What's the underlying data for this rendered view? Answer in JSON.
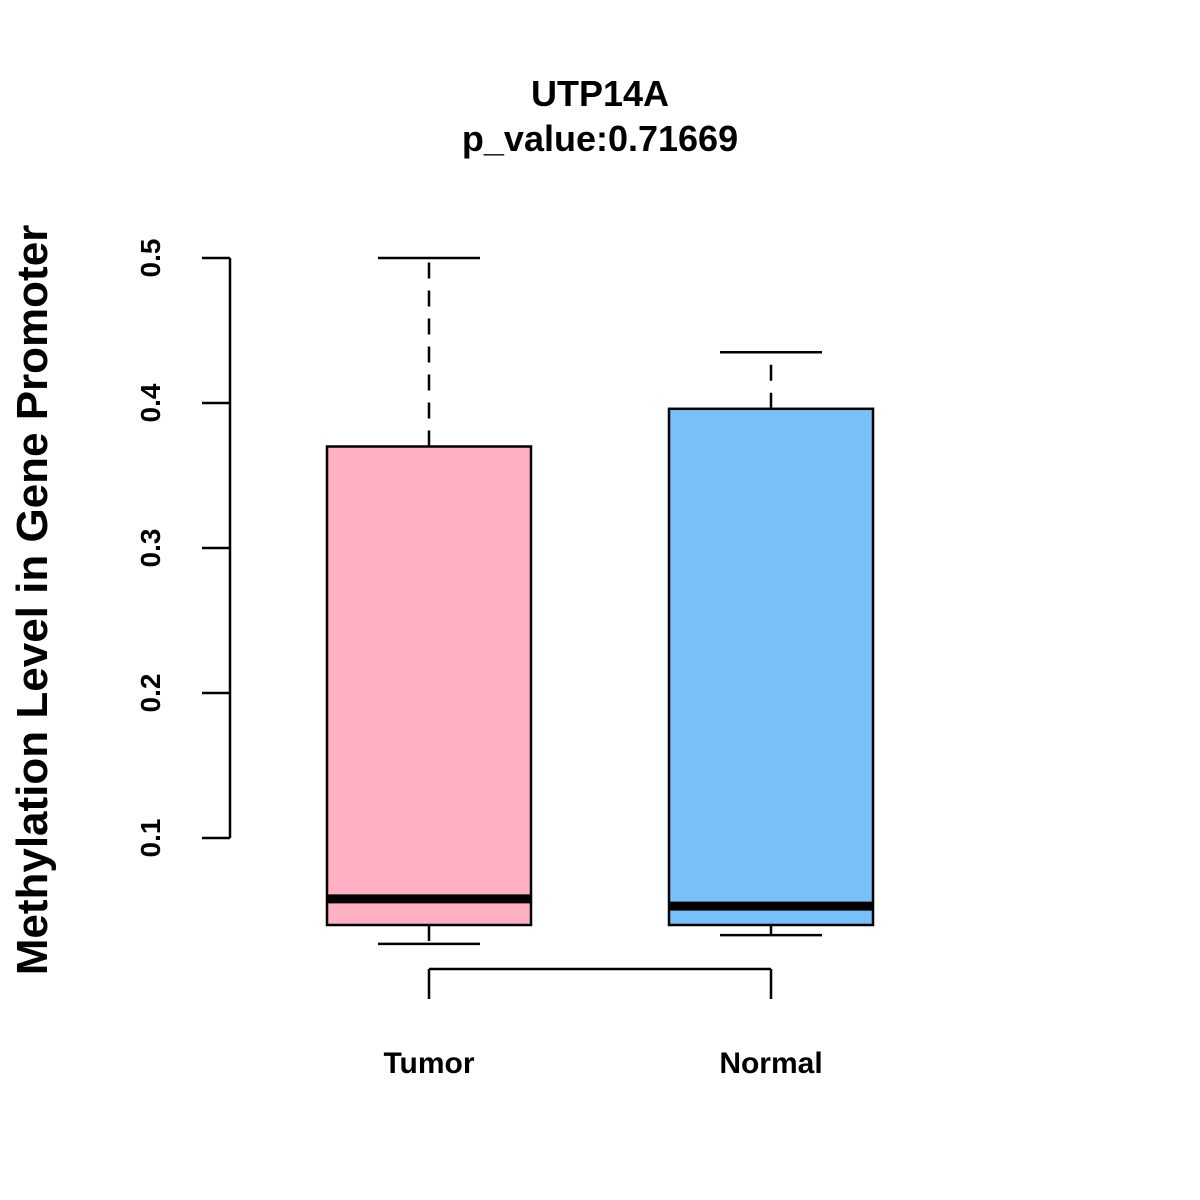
{
  "chart_data": {
    "type": "box",
    "title": "UTP14A",
    "subtitle": "p_value:0.71669",
    "ylabel": "Methylation Level in Gene Promoter",
    "xlabel": "",
    "ylim": [
      0.1,
      0.5
    ],
    "yticks": [
      "0.1",
      "0.2",
      "0.3",
      "0.4",
      "0.5"
    ],
    "categories": [
      "Tumor",
      "Normal"
    ],
    "grid": false,
    "series": [
      {
        "category": "Tumor",
        "color": "#FFB0C2",
        "whisker_low": 0.027,
        "q1": 0.04,
        "median": 0.058,
        "q3": 0.37,
        "whisker_high": 0.5
      },
      {
        "category": "Normal",
        "color": "#78C1F8",
        "whisker_low": 0.033,
        "q1": 0.04,
        "median": 0.053,
        "q3": 0.396,
        "whisker_high": 0.435
      }
    ]
  }
}
